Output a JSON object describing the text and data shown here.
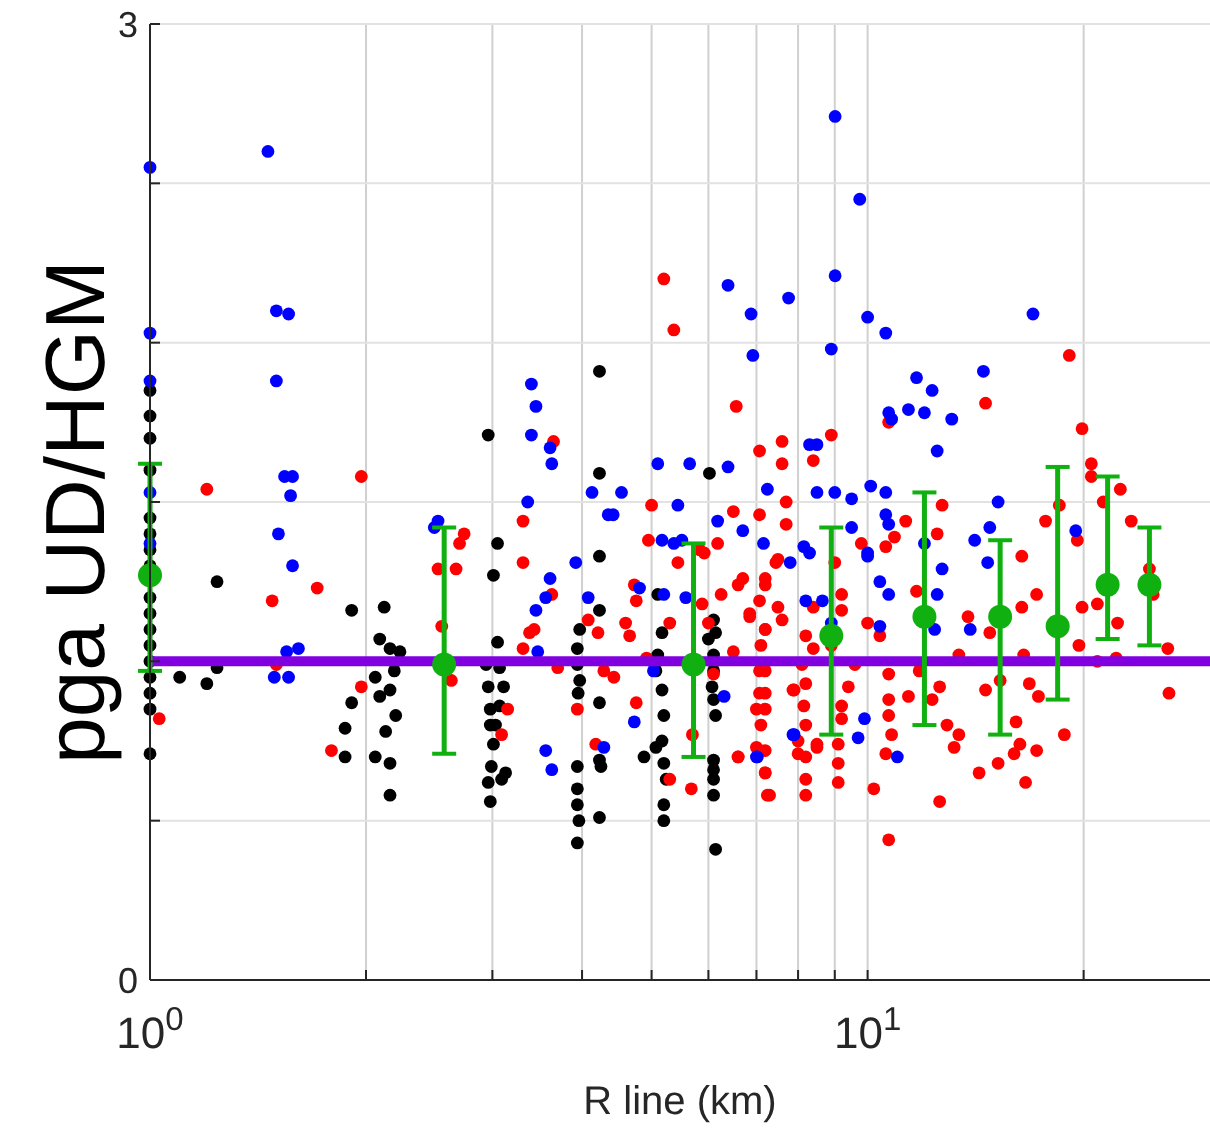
{
  "chart_data": {
    "type": "scatter",
    "xlabel": "R line (km)",
    "ylabel": "pga UD/HGM",
    "log": "x",
    "grid": true,
    "marker": "circle",
    "xlim": [
      1,
      30
    ],
    "xticks": [
      {
        "value": 1,
        "label": "10$^{0}$"
      },
      {
        "value": 2,
        "label": null
      },
      {
        "value": 3,
        "label": null
      },
      {
        "value": 4,
        "label": null
      },
      {
        "value": 5,
        "label": null
      },
      {
        "value": 6,
        "label": null
      },
      {
        "value": 7,
        "label": null
      },
      {
        "value": 8,
        "label": null
      },
      {
        "value": 9,
        "label": null
      },
      {
        "value": 10,
        "label": "10$^{1}$"
      },
      {
        "value": 20,
        "label": null
      }
    ],
    "ylim": [
      0,
      3
    ],
    "yticks": [
      0,
      {
        "value": 0.5,
        "label": null
      },
      {
        "value": 1,
        "label": null
      },
      {
        "value": 1.5,
        "label": null
      },
      {
        "value": 2,
        "label": null
      },
      {
        "value": 2.5,
        "label": null
      },
      3
    ],
    "ref_lines": [
      {
        "axis": "y",
        "value": 1,
        "color": "#8000e0"
      }
    ],
    "series": [
      {
        "color": "#000000",
        "x": [
          1,
          1,
          1,
          1,
          1,
          1,
          1,
          1,
          1,
          1,
          1,
          1,
          1,
          1,
          1,
          1,
          1,
          1.24,
          1.1,
          1.2,
          1.24,
          1.91,
          2.12,
          2.09,
          2.16,
          2.23,
          2.19,
          2.06,
          2.09,
          2.16,
          1.91,
          2.2,
          1.87,
          1.87,
          2.13,
          2.16,
          2.06,
          2.16,
          2.96,
          3.05,
          3.01,
          3.05,
          2.94,
          3.07,
          2.96,
          3.11,
          2.98,
          3.07,
          2.98,
          3.03,
          3.01,
          2.99,
          3.13,
          2.96,
          3.09,
          2.98,
          4.23,
          4.23,
          4.23,
          4.23,
          3.97,
          3.94,
          3.94,
          3.97,
          3.95,
          4.23,
          3.94,
          4.23,
          4.25,
          3.94,
          3.94,
          3.96,
          3.94,
          4.23,
          5.1,
          5.17,
          5.1,
          5.07,
          5.17,
          5.2,
          5.17,
          5.07,
          5.2,
          5.24,
          5.2,
          5.2,
          4.88,
          6.02,
          6.1,
          6.14,
          6.0,
          6.1,
          6.1,
          6.07,
          6.1,
          6.14,
          6.1,
          6.1,
          6.1,
          6.1,
          6.14
        ],
        "values": [
          1.85,
          1.77,
          1.7,
          1.6,
          1.45,
          1.4,
          1.35,
          1.3,
          1.2,
          1.15,
          1.1,
          1.05,
          1.0,
          0.95,
          0.9,
          0.85,
          0.71,
          1.25,
          0.95,
          0.93,
          0.98,
          1.16,
          1.17,
          1.07,
          1.04,
          1.03,
          0.97,
          0.95,
          0.89,
          0.91,
          0.87,
          0.83,
          0.79,
          0.7,
          0.78,
          0.68,
          0.7,
          0.58,
          1.71,
          1.37,
          1.27,
          1.06,
          0.99,
          0.98,
          0.92,
          0.92,
          0.85,
          0.86,
          0.8,
          0.8,
          0.74,
          0.67,
          0.65,
          0.62,
          0.63,
          0.56,
          1.91,
          1.59,
          1.33,
          1.16,
          1.1,
          1.04,
          0.99,
          0.94,
          0.9,
          0.87,
          0.67,
          0.69,
          0.67,
          0.6,
          0.55,
          0.5,
          0.43,
          0.51,
          1.21,
          1.09,
          1.02,
          0.97,
          0.91,
          0.83,
          0.75,
          0.73,
          0.68,
          0.63,
          0.55,
          0.5,
          0.7,
          1.59,
          1.13,
          1.09,
          1.07,
          1.02,
          0.97,
          0.92,
          0.88,
          0.83,
          0.69,
          0.66,
          0.63,
          0.58,
          0.41
        ]
      },
      {
        "color": "#ff0000",
        "x": [
          1.2,
          1.03,
          1.97,
          1.48,
          1.71,
          1.5,
          1.97,
          1.79,
          2.52,
          2.67,
          2.74,
          2.7,
          2.55,
          2.63,
          3.65,
          3.31,
          3.31,
          3.43,
          3.38,
          3.31,
          3.63,
          3.7,
          3.15,
          3.09,
          3.94,
          4.08,
          4.21,
          4.29,
          4.43,
          4.18,
          5.2,
          5.37,
          4.73,
          4.76,
          4.6,
          4.66,
          4.76,
          5.0,
          4.95,
          5.3,
          4.92,
          5.3,
          5.44,
          5.92,
          5.88,
          6.0,
          5.68,
          6.18,
          6.56,
          7.07,
          7.6,
          7.6,
          6.5,
          7.07,
          7.7,
          7.7,
          7.5,
          6.7,
          7.2,
          6.85,
          7.2,
          7.6,
          6.25,
          6.5,
          6.1,
          7.07,
          7.0,
          7.2,
          7.87,
          6.6,
          7.2,
          7.25,
          8.0,
          5.7,
          8.9,
          10.7,
          14.6,
          19.1,
          19.9,
          20.5,
          20.5,
          21.3,
          22.5,
          23.3,
          17.7,
          18.5,
          19.6,
          16.4,
          17.2,
          19.9,
          20.9,
          22.3,
          19.7,
          26.3,
          26.2,
          24.7,
          25.0,
          20.9,
          22.2,
          18.8,
          17.2,
          16.6,
          16.0,
          16.3,
          16.1,
          16.8,
          16.5,
          17.3,
          15.2,
          14.3,
          13.4,
          13.2,
          14.6,
          15.3,
          13.8,
          13.4,
          14.8,
          16.4,
          12.6,
          12.9,
          12.6,
          12.3,
          11.4,
          11.8,
          12.7,
          12.5,
          11.7,
          11.3,
          10.9,
          10.6,
          10.2,
          10.7,
          10.6,
          10.8,
          10.7,
          10.7,
          10.4,
          10.7,
          10.0,
          9.8,
          9.6,
          9.4,
          9.2,
          9.2,
          9.1,
          9.1,
          9.1,
          9.0,
          9.2,
          9.2,
          8.9,
          8.4,
          8.4,
          8.2,
          8.4,
          8.1,
          8.2,
          7.9,
          8.15,
          8.2,
          8.0,
          8.2,
          8.2,
          8.2,
          8.5,
          8.5,
          7.45,
          7.5,
          7.2,
          7.07,
          7.2,
          7.1,
          7.2,
          7.07,
          7.2,
          7.1,
          7.2,
          7.2,
          7.3,
          7.0,
          6.85,
          6.6,
          5.83,
          6.6
        ],
        "values": [
          1.54,
          0.82,
          1.58,
          1.19,
          1.23,
          0.99,
          0.92,
          0.72,
          1.29,
          1.29,
          1.4,
          1.37,
          1.11,
          0.94,
          1.69,
          1.44,
          1.31,
          1.1,
          1.09,
          1.04,
          1.21,
          0.98,
          0.85,
          0.77,
          0.85,
          1.13,
          1.09,
          0.97,
          0.95,
          0.74,
          2.2,
          2.04,
          1.24,
          1.19,
          1.12,
          1.08,
          0.87,
          1.49,
          1.38,
          1.12,
          1.01,
          0.63,
          1.31,
          1.34,
          1.18,
          1.12,
          0.6,
          1.37,
          1.8,
          1.66,
          1.69,
          1.62,
          1.47,
          1.46,
          1.5,
          1.43,
          1.32,
          1.26,
          1.26,
          1.14,
          1.1,
          1.13,
          1.21,
          1.03,
          0.96,
          0.97,
          0.85,
          0.9,
          0.91,
          0.7,
          0.65,
          0.58,
          0.71,
          0.77,
          1.71,
          1.75,
          1.81,
          1.96,
          1.73,
          1.62,
          1.58,
          1.5,
          1.54,
          1.44,
          1.44,
          1.49,
          1.38,
          1.33,
          1.21,
          1.17,
          1.18,
          1.12,
          1.05,
          0.9,
          1.04,
          1.29,
          1.21,
          1.0,
          1.01,
          0.77,
          0.72,
          0.62,
          0.71,
          0.74,
          0.81,
          0.93,
          1.02,
          0.89,
          0.68,
          0.65,
          0.77,
          0.73,
          0.91,
          0.94,
          1.14,
          1.02,
          1.09,
          1.17,
          0.56,
          0.8,
          0.92,
          0.88,
          0.89,
          0.97,
          1.49,
          1.4,
          1.22,
          1.44,
          1.39,
          1.36,
          0.6,
          0.44,
          0.71,
          0.77,
          0.88,
          0.83,
          1.08,
          0.96,
          1.12,
          1.37,
          0.99,
          0.92,
          0.86,
          0.82,
          0.74,
          0.62,
          0.68,
          1.31,
          1.21,
          1.16,
          1.05,
          1.63,
          1.17,
          1.08,
          1.04,
          0.99,
          0.93,
          0.91,
          0.86,
          0.8,
          0.75,
          0.7,
          0.63,
          0.58,
          0.74,
          0.73,
          1.31,
          1.17,
          1.24,
          1.19,
          1.1,
          1.05,
          0.97,
          0.9,
          0.85,
          0.8,
          0.72,
          0.65,
          0.58,
          0.73,
          1.15,
          1.24,
          1.35,
          0.7
        ]
      },
      {
        "color": "#0000ff",
        "x": [
          1,
          1.46,
          1,
          1,
          1.5,
          1.56,
          1.5,
          1.54,
          1.58,
          1.57,
          1.51,
          1.58,
          1.55,
          1.61,
          1.49,
          1.56,
          1,
          1,
          2.52,
          2.49,
          3.4,
          3.45,
          3.4,
          3.61,
          3.63,
          3.36,
          3.92,
          3.61,
          3.56,
          3.45,
          3.47,
          3.56,
          3.63,
          4.08,
          4.13,
          4.35,
          4.42,
          4.54,
          4.81,
          4.73,
          4.29,
          5.1,
          5.65,
          5.44,
          5.17,
          5.37,
          5.51,
          5.2,
          5.58,
          6.39,
          6.88,
          6.92,
          7.76,
          6.39,
          6.18,
          6.7,
          7.25,
          7.16,
          6.31,
          7.02,
          7.87,
          5.03,
          9.01,
          9.75,
          9.01,
          8.9,
          10.0,
          10.6,
          11.7,
          12.3,
          10.7,
          10.8,
          11.4,
          12.0,
          13.1,
          12.5,
          14.5,
          17.0,
          19.5,
          15.2,
          14.8,
          14.1,
          14.7,
          13.9,
          12.7,
          12.5,
          12.4,
          12.0,
          10.6,
          10.7,
          10.4,
          10.7,
          10.4,
          9.9,
          9.7,
          11.0,
          10.1,
          10.6,
          9.5,
          9.0,
          8.5,
          8.3,
          8.5,
          9.5,
          10.0,
          10.0,
          8.15,
          8.3,
          7.8,
          8.2,
          8.65,
          8.9,
          7.9,
          7.0
        ],
        "values": [
          2.55,
          2.6,
          2.03,
          1.88,
          2.1,
          2.09,
          1.88,
          1.58,
          1.58,
          1.52,
          1.4,
          1.3,
          1.03,
          1.04,
          0.95,
          0.95,
          1.53,
          1.37,
          1.44,
          1.42,
          1.87,
          1.8,
          1.71,
          1.67,
          1.62,
          1.5,
          1.31,
          1.26,
          1.2,
          1.16,
          1.03,
          0.72,
          0.66,
          1.2,
          1.53,
          1.46,
          1.46,
          1.53,
          1.23,
          0.81,
          0.73,
          1.62,
          1.62,
          1.49,
          1.38,
          1.37,
          1.38,
          1.21,
          1.2,
          2.18,
          2.09,
          1.96,
          2.14,
          1.61,
          1.44,
          1.41,
          1.54,
          1.37,
          0.89,
          0.7,
          0.77,
          0.97,
          2.71,
          2.45,
          2.21,
          1.98,
          2.08,
          2.03,
          1.89,
          1.85,
          1.78,
          1.76,
          1.79,
          1.78,
          1.76,
          1.66,
          1.91,
          2.09,
          1.41,
          1.5,
          1.42,
          1.38,
          1.31,
          1.1,
          1.29,
          1.21,
          1.1,
          1.37,
          1.46,
          1.43,
          1.25,
          1.21,
          1.11,
          0.82,
          0.76,
          0.7,
          1.55,
          1.53,
          1.51,
          1.53,
          1.53,
          1.68,
          1.68,
          1.42,
          1.34,
          1.33,
          1.36,
          1.34,
          1.31,
          1.19,
          1.19,
          1.12,
          0.77,
          0.7
        ]
      },
      {
        "color": "#10b010",
        "x": [
          1.0,
          2.57,
          5.72,
          8.9,
          12.0,
          15.3,
          18.4,
          21.6,
          24.7
        ],
        "values": [
          1.27,
          0.99,
          0.99,
          1.08,
          1.14,
          1.14,
          1.11,
          1.24,
          1.24
        ],
        "errors": [
          [
            0.97,
            1.62
          ],
          [
            0.71,
            1.42
          ],
          [
            0.7,
            1.37
          ],
          [
            0.77,
            1.42
          ],
          [
            0.8,
            1.53
          ],
          [
            0.77,
            1.38
          ],
          [
            0.88,
            1.61
          ],
          [
            1.07,
            1.58
          ],
          [
            1.05,
            1.42
          ]
        ]
      }
    ]
  }
}
